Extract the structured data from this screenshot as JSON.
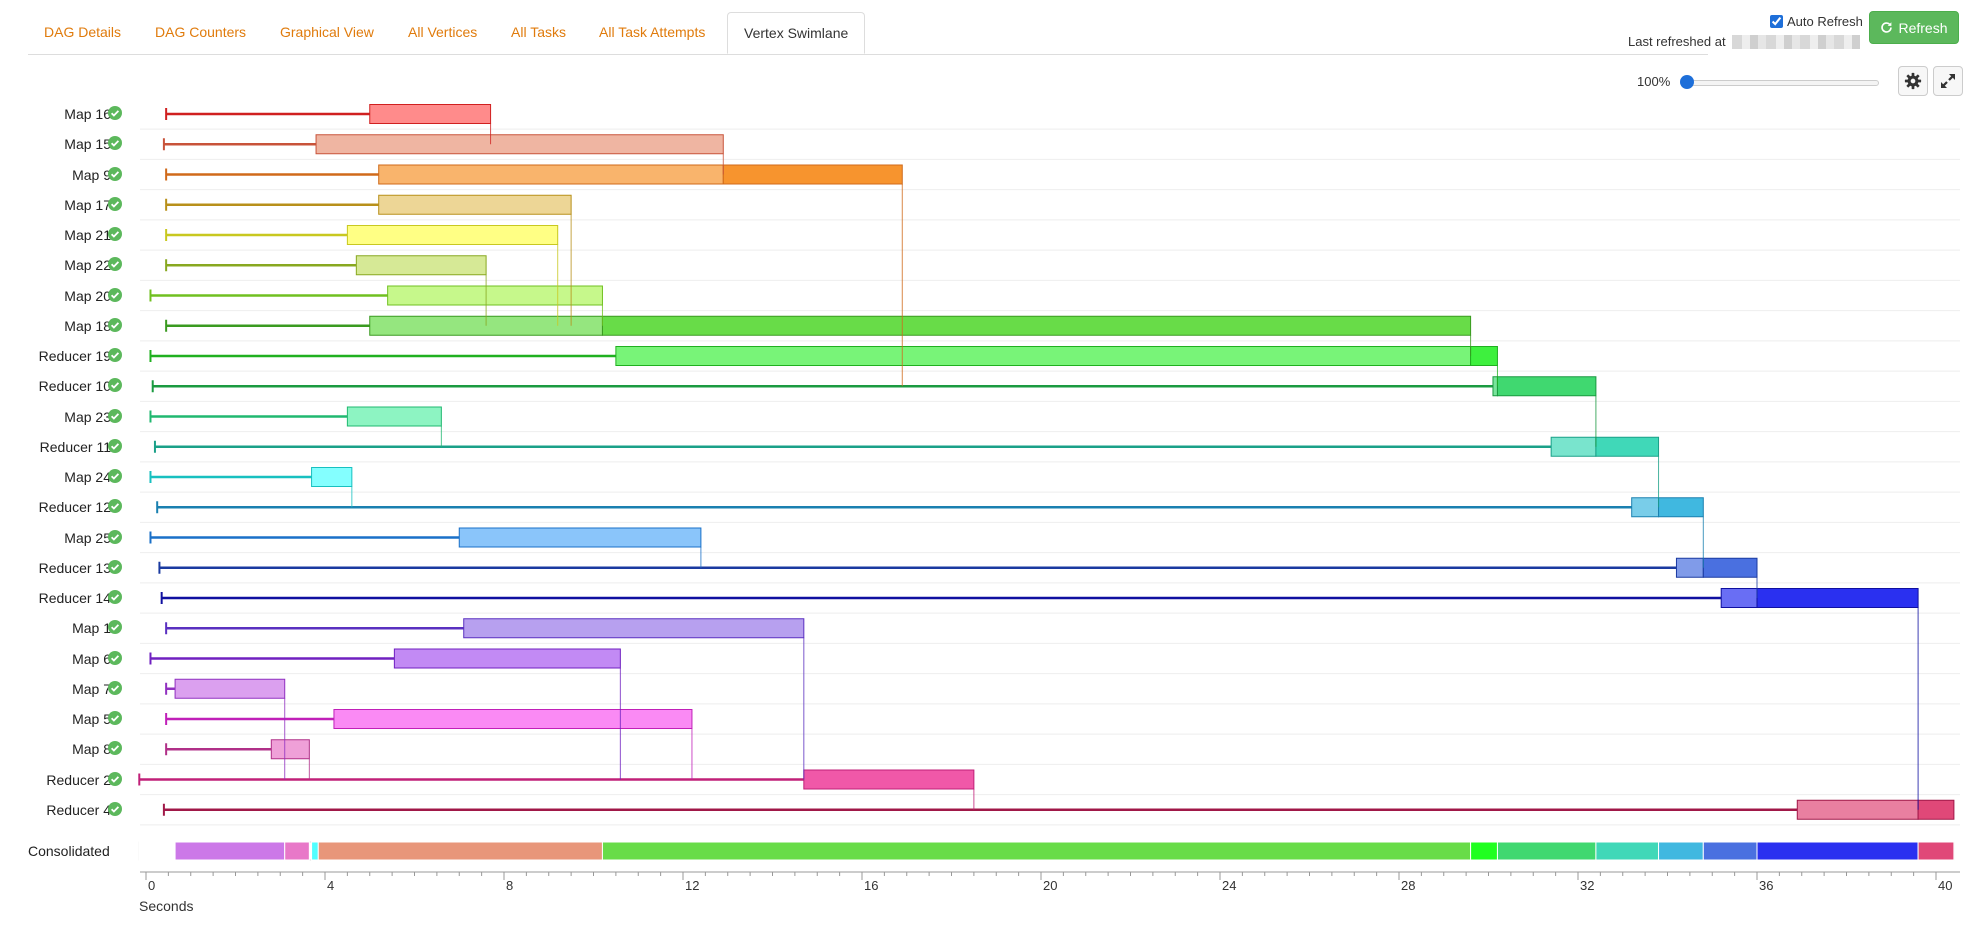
{
  "tabs": [
    {
      "label": "DAG Details",
      "active": false
    },
    {
      "label": "DAG Counters",
      "active": false
    },
    {
      "label": "Graphical View",
      "active": false
    },
    {
      "label": "All Vertices",
      "active": false
    },
    {
      "label": "All Tasks",
      "active": false
    },
    {
      "label": "All Task Attempts",
      "active": false
    },
    {
      "label": "Vertex Swimlane",
      "active": true
    }
  ],
  "header": {
    "auto_refresh_label": "Auto Refresh",
    "auto_refresh_checked": true,
    "refresh_label": "Refresh",
    "last_refreshed_label": "Last refreshed at"
  },
  "zoom": {
    "label": "100%",
    "value": 100
  },
  "colors": {
    "link": "#e07b0c",
    "refresh_bg": "#5cb85c",
    "succeeded": "#5cb85c",
    "accent": "#1e6fd9"
  },
  "swimlane": {
    "status_icon": "check-circle-icon",
    "axis": {
      "ticks": [
        "0",
        "4",
        "8",
        "12",
        "16",
        "20",
        "24",
        "28",
        "32",
        "36",
        "40"
      ],
      "title": "Seconds"
    },
    "consolidated_label": "Consolidated",
    "vertices": [
      {
        "name": "Map 16",
        "status": "succeeded",
        "color": "#ff5a5a",
        "line": "#d02020",
        "start": 0.45,
        "init_end": 5.0,
        "run_end": 7.7,
        "finish": 7.7,
        "dep": null
      },
      {
        "name": "Map 15",
        "status": "succeeded",
        "color": "#e8967a",
        "line": "#c8533a",
        "start": 0.4,
        "init_end": 3.8,
        "run_end": 12.9,
        "finish": 12.9,
        "dep": 7.7
      },
      {
        "name": "Map 9",
        "status": "succeeded",
        "color": "#f7942e",
        "line": "#d06a1a",
        "start": 0.45,
        "init_end": 5.2,
        "run_end": 12.9,
        "finish": 16.9,
        "dep": 12.9
      },
      {
        "name": "Map 17",
        "status": "succeeded",
        "color": "#e5c46a",
        "line": "#b8901a",
        "start": 0.45,
        "init_end": 5.2,
        "run_end": 9.5,
        "finish": 9.5,
        "dep": null
      },
      {
        "name": "Map 21",
        "status": "succeeded",
        "color": "#ffff50",
        "line": "#c8c820",
        "start": 0.45,
        "init_end": 4.5,
        "run_end": 9.2,
        "finish": 9.2,
        "dep": null
      },
      {
        "name": "Map 22",
        "status": "succeeded",
        "color": "#c5e06a",
        "line": "#88a820",
        "start": 0.45,
        "init_end": 4.7,
        "run_end": 7.6,
        "finish": 7.6,
        "dep": null
      },
      {
        "name": "Map 20",
        "status": "succeeded",
        "color": "#aef55a",
        "line": "#70c020",
        "start": 0.1,
        "init_end": 5.4,
        "run_end": 10.2,
        "finish": 10.2,
        "dep": null
      },
      {
        "name": "Map 18",
        "status": "succeeded",
        "color": "#68dc48",
        "line": "#3a9a20",
        "start": 0.45,
        "init_end": 5.0,
        "run_end": 10.2,
        "finish": 29.6,
        "dep": null
      },
      {
        "name": "Reducer 19",
        "status": "succeeded",
        "color": "#3ef03e",
        "line": "#20b020",
        "start": 0.1,
        "init_end": 10.5,
        "run_end": 29.6,
        "finish": 30.2,
        "dep": 29.6
      },
      {
        "name": "Reducer 10",
        "status": "succeeded",
        "color": "#40d870",
        "line": "#1a9a40",
        "start": 0.15,
        "init_end": 30.1,
        "run_end": 30.2,
        "finish": 32.4,
        "dep": 30.2
      },
      {
        "name": "Map 23",
        "status": "succeeded",
        "color": "#5cf0a8",
        "line": "#20b870",
        "start": 0.1,
        "init_end": 4.5,
        "run_end": 6.6,
        "finish": 6.6,
        "dep": null
      },
      {
        "name": "Reducer 11",
        "status": "succeeded",
        "color": "#40d8b8",
        "line": "#1aa088",
        "start": 0.2,
        "init_end": 31.4,
        "run_end": 32.4,
        "finish": 33.8,
        "dep": 32.4
      },
      {
        "name": "Map 24",
        "status": "succeeded",
        "color": "#50ffff",
        "line": "#18c0c0",
        "start": 0.1,
        "init_end": 3.7,
        "run_end": 4.6,
        "finish": 4.6,
        "dep": null
      },
      {
        "name": "Reducer 12",
        "status": "succeeded",
        "color": "#40b8e0",
        "line": "#1a80b0",
        "start": 0.25,
        "init_end": 33.2,
        "run_end": 33.8,
        "finish": 34.8,
        "dep": 33.8
      },
      {
        "name": "Map 25",
        "status": "succeeded",
        "color": "#58acf8",
        "line": "#1a70c8",
        "start": 0.1,
        "init_end": 7.0,
        "run_end": 12.4,
        "finish": 12.4,
        "dep": null
      },
      {
        "name": "Reducer 13",
        "status": "succeeded",
        "color": "#4a70e0",
        "line": "#1a3aa0",
        "start": 0.3,
        "init_end": 34.2,
        "run_end": 34.8,
        "finish": 36.0,
        "dep": 34.8
      },
      {
        "name": "Reducer 14",
        "status": "succeeded",
        "color": "#2a30f0",
        "line": "#1010a0",
        "start": 0.35,
        "init_end": 35.2,
        "run_end": 36.0,
        "finish": 39.6,
        "dep": 36.0
      },
      {
        "name": "Map 1",
        "status": "succeeded",
        "color": "#9878e8",
        "line": "#5a30c0",
        "start": 0.45,
        "init_end": 7.1,
        "run_end": 14.7,
        "finish": 14.7,
        "dep": null
      },
      {
        "name": "Map 6",
        "status": "succeeded",
        "color": "#a858f0",
        "line": "#7020c0",
        "start": 0.1,
        "init_end": 5.55,
        "run_end": 10.6,
        "finish": 10.6,
        "dep": null
      },
      {
        "name": "Map 7",
        "status": "succeeded",
        "color": "#cc78e8",
        "line": "#9030c0",
        "start": 0.45,
        "init_end": 0.65,
        "run_end": 3.1,
        "finish": 3.1,
        "dep": null
      },
      {
        "name": "Map 5",
        "status": "succeeded",
        "color": "#f858f0",
        "line": "#c020b8",
        "start": 0.45,
        "init_end": 4.2,
        "run_end": 12.2,
        "finish": 12.2,
        "dep": null
      },
      {
        "name": "Map 8",
        "status": "succeeded",
        "color": "#e878c8",
        "line": "#b03088",
        "start": 0.45,
        "init_end": 2.8,
        "run_end": 3.65,
        "finish": 3.65,
        "dep": null
      },
      {
        "name": "Reducer 2",
        "status": "succeeded",
        "color": "#f058a8",
        "line": "#c02078",
        "start": -0.15,
        "init_end": 14.7,
        "run_end": 14.7,
        "finish": 18.5,
        "dep": 14.7
      },
      {
        "name": "Reducer 4",
        "status": "succeeded",
        "color": "#e04878",
        "line": "#a01848",
        "start": 0.4,
        "init_end": 36.9,
        "run_end": 39.6,
        "finish": 40.4,
        "dep": 39.6
      }
    ],
    "consolidated": [
      {
        "start": -0.15,
        "end": 0.65,
        "color": "#ffffff"
      },
      {
        "start": 0.65,
        "end": 3.1,
        "color": "#cc78e8"
      },
      {
        "start": 3.1,
        "end": 3.65,
        "color": "#e878c8"
      },
      {
        "start": 3.7,
        "end": 3.85,
        "color": "#50ffff"
      },
      {
        "start": 3.85,
        "end": 10.2,
        "color": "#e8967a"
      },
      {
        "start": 10.2,
        "end": 29.6,
        "color": "#68dc48"
      },
      {
        "start": 29.6,
        "end": 30.2,
        "color": "#20ff20"
      },
      {
        "start": 30.2,
        "end": 32.4,
        "color": "#40d870"
      },
      {
        "start": 32.4,
        "end": 33.8,
        "color": "#40d8b8"
      },
      {
        "start": 33.8,
        "end": 34.8,
        "color": "#40b8e0"
      },
      {
        "start": 34.8,
        "end": 36.0,
        "color": "#4a70e0"
      },
      {
        "start": 36.0,
        "end": 39.6,
        "color": "#2a30f0"
      },
      {
        "start": 39.6,
        "end": 40.4,
        "color": "#e04878"
      }
    ]
  }
}
